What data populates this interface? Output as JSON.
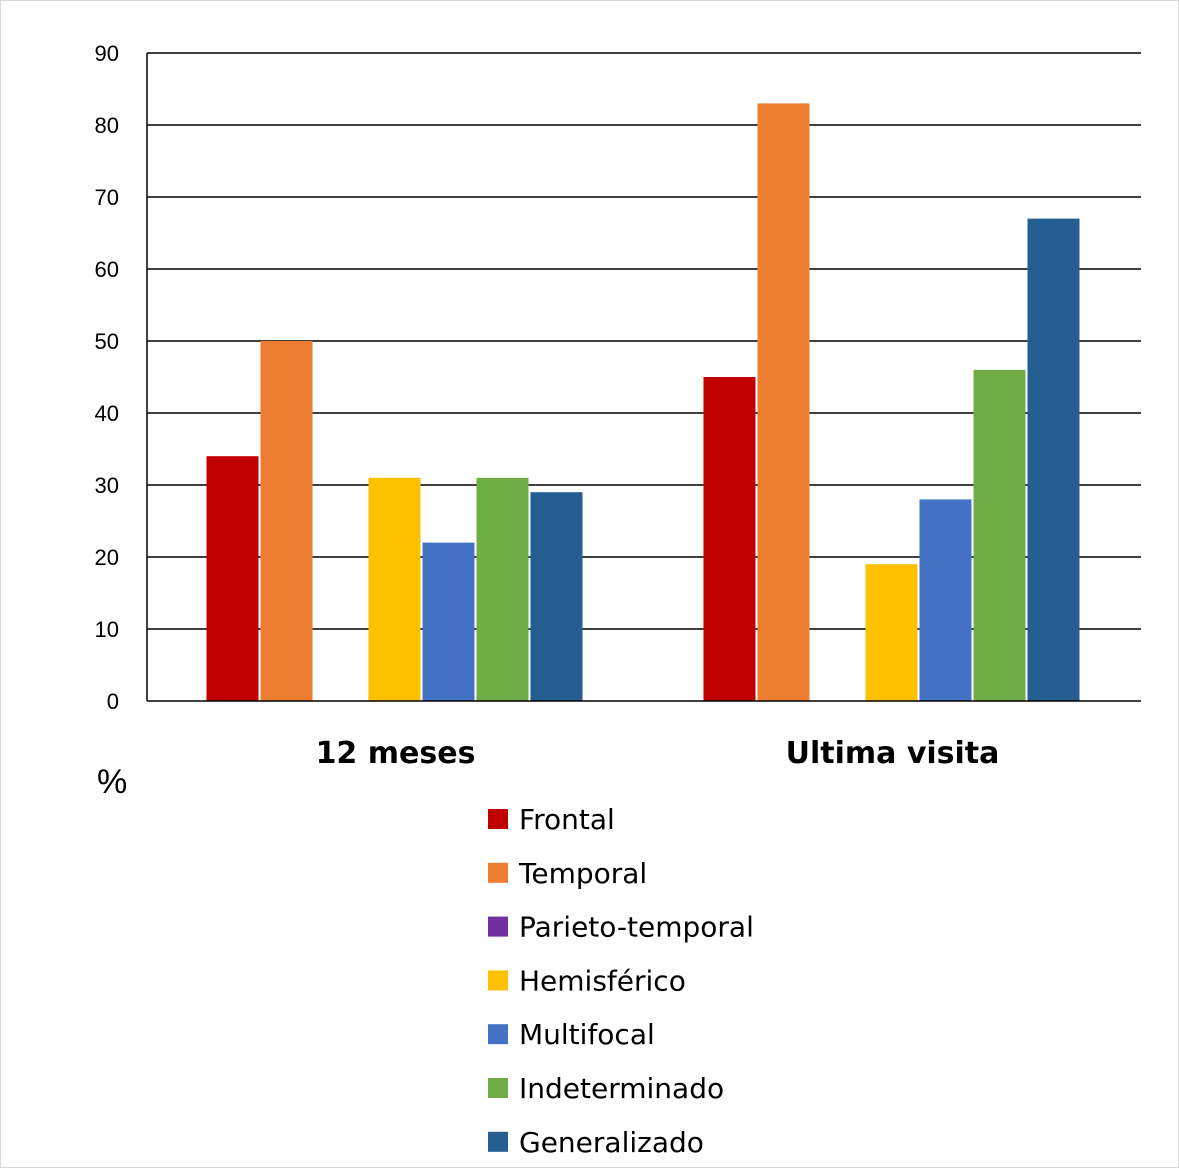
{
  "chart_data": {
    "type": "bar",
    "categories": [
      "12 meses",
      "Ultima visita"
    ],
    "series": [
      {
        "name": "Frontal",
        "color": "#C00000",
        "values": [
          34,
          45
        ]
      },
      {
        "name": "Temporal",
        "color": "#ED7D31",
        "values": [
          50,
          83
        ]
      },
      {
        "name": "Parieto-temporal",
        "color": "#7030A0",
        "values": [
          0,
          0
        ]
      },
      {
        "name": "Hemisférico",
        "color": "#FFC000",
        "values": [
          31,
          19
        ]
      },
      {
        "name": "Multifocal",
        "color": "#4472C4",
        "values": [
          22,
          28
        ]
      },
      {
        "name": "Indeterminado",
        "color": "#70AD47",
        "values": [
          31,
          46
        ]
      },
      {
        "name": "Generalizado",
        "color": "#255E91",
        "values": [
          29,
          67
        ]
      }
    ],
    "ylabel": "%",
    "ylim": [
      0,
      90
    ],
    "yticks": [
      0,
      10,
      20,
      30,
      40,
      50,
      60,
      70,
      80,
      90
    ],
    "grid": true,
    "legend": "bottom"
  }
}
